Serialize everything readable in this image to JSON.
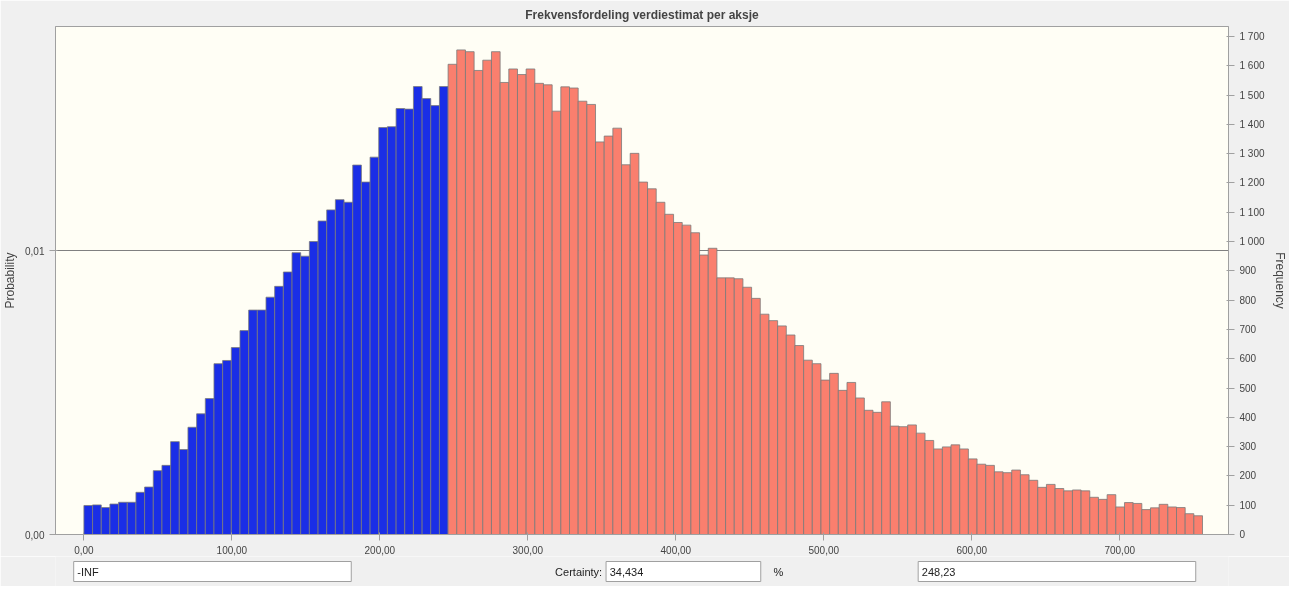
{
  "chart_data": {
    "type": "histogram",
    "title": "Frekvensfordeling verdiestimat per aksje",
    "ylabel": "Probability",
    "y2label": "Frequency",
    "bins": [
      0,
      5.86,
      11.72,
      17.58,
      23.44,
      29.3,
      35.16,
      41.02,
      46.88,
      52.74,
      58.6,
      64.46,
      70.32,
      76.18,
      82.04,
      87.9,
      93.76,
      99.62,
      105.48,
      111.34,
      117.2,
      123.06,
      128.92,
      134.78,
      140.64,
      146.5,
      152.36,
      158.22,
      164.08,
      169.94,
      175.8,
      181.66,
      187.52,
      193.38,
      199.24,
      205.1,
      210.96,
      216.82,
      222.68,
      228.54,
      234.4,
      240.26,
      246.12,
      251.98,
      257.84,
      263.7,
      269.56,
      275.42,
      281.28,
      287.14,
      293,
      298.86,
      304.72,
      310.58,
      316.44,
      322.3,
      328.16,
      334.02,
      339.88,
      345.74,
      351.6,
      357.46,
      363.32,
      369.18,
      375.04,
      380.9,
      386.76,
      392.62,
      398.48,
      404.34,
      410.2,
      416.06,
      421.92,
      427.78,
      433.64,
      439.5,
      445.36,
      451.22,
      457.08,
      462.94,
      468.8,
      474.66,
      480.52,
      486.38,
      492.24,
      498.1,
      503.96,
      509.82,
      515.68,
      521.54,
      527.4,
      533.26,
      539.12,
      544.98,
      550.84,
      556.7,
      562.56,
      568.42,
      574.28,
      580.14,
      586,
      591.86,
      597.72,
      603.58,
      609.44,
      615.3,
      621.16,
      627.02,
      632.88,
      638.74,
      644.6,
      650.46,
      656.32,
      662.18,
      668.04,
      673.9,
      679.76,
      685.62,
      691.48,
      697.34,
      703.2,
      709.06,
      714.92,
      720.78,
      726.64,
      732.5,
      738.36,
      744.22,
      750.08,
      755.94
    ],
    "series": [
      {
        "axis": "y2",
        "values": [
          99,
          101,
          92,
          104,
          110,
          110,
          144,
          162,
          218,
          236,
          317,
          290,
          366,
          412,
          464,
          583,
          594,
          638,
          696,
          766,
          766,
          810,
          847,
          896,
          962,
          950,
          1000,
          1070,
          1108,
          1143,
          1134,
          1261,
          1203,
          1288,
          1389,
          1392,
          1454,
          1452,
          1529,
          1488,
          1464,
          1529,
          1605,
          1654,
          1648,
          1584,
          1619,
          1648,
          1543,
          1589,
          1570,
          1589,
          1540,
          1535,
          1445,
          1528,
          1524,
          1479,
          1468,
          1340,
          1360,
          1387,
          1262,
          1301,
          1203,
          1180,
          1134,
          1093,
          1065,
          1056,
          1030,
          954,
          977,
          876,
          876,
          873,
          844,
          806,
          752,
          730,
          712,
          681,
          645,
          595,
          583,
          527,
          550,
          492,
          519,
          466,
          424,
          417,
          453,
          370,
          368,
          374,
          346,
          321,
          292,
          299,
          306,
          292,
          258,
          240,
          236,
          214,
          211,
          220,
          204,
          185,
          161,
          171,
          157,
          149,
          152,
          149,
          127,
          120,
          136,
          94,
          109,
          106,
          85,
          91,
          103,
          94,
          92,
          71,
          64
        ],
        "colors": [
          "#1a2ee6",
          "#1a2ee6",
          "#1a2ee6",
          "#1a2ee6",
          "#1a2ee6",
          "#1a2ee6",
          "#1a2ee6",
          "#1a2ee6",
          "#1a2ee6",
          "#1a2ee6",
          "#1a2ee6",
          "#1a2ee6",
          "#1a2ee6",
          "#1a2ee6",
          "#1a2ee6",
          "#1a2ee6",
          "#1a2ee6",
          "#1a2ee6",
          "#1a2ee6",
          "#1a2ee6",
          "#1a2ee6",
          "#1a2ee6",
          "#1a2ee6",
          "#1a2ee6",
          "#1a2ee6",
          "#1a2ee6",
          "#1a2ee6",
          "#1a2ee6",
          "#1a2ee6",
          "#1a2ee6",
          "#1a2ee6",
          "#1a2ee6",
          "#1a2ee6",
          "#1a2ee6",
          "#1a2ee6",
          "#1a2ee6",
          "#1a2ee6",
          "#1a2ee6",
          "#1a2ee6",
          "#1a2ee6",
          "#1a2ee6",
          "#1a2ee6",
          "#fa7f6e",
          "#fa7f6e",
          "#fa7f6e",
          "#fa7f6e",
          "#fa7f6e",
          "#fa7f6e",
          "#fa7f6e",
          "#fa7f6e",
          "#fa7f6e",
          "#fa7f6e",
          "#fa7f6e",
          "#fa7f6e",
          "#fa7f6e",
          "#fa7f6e",
          "#fa7f6e",
          "#fa7f6e",
          "#fa7f6e",
          "#fa7f6e",
          "#fa7f6e",
          "#fa7f6e",
          "#fa7f6e",
          "#fa7f6e",
          "#fa7f6e",
          "#fa7f6e",
          "#fa7f6e",
          "#fa7f6e",
          "#fa7f6e",
          "#fa7f6e",
          "#fa7f6e",
          "#fa7f6e",
          "#fa7f6e",
          "#fa7f6e",
          "#fa7f6e",
          "#fa7f6e",
          "#fa7f6e",
          "#fa7f6e",
          "#fa7f6e",
          "#fa7f6e",
          "#fa7f6e",
          "#fa7f6e",
          "#fa7f6e",
          "#fa7f6e",
          "#fa7f6e",
          "#fa7f6e",
          "#fa7f6e",
          "#fa7f6e",
          "#fa7f6e",
          "#fa7f6e",
          "#fa7f6e",
          "#fa7f6e",
          "#fa7f6e",
          "#fa7f6e",
          "#fa7f6e",
          "#fa7f6e",
          "#fa7f6e",
          "#fa7f6e",
          "#fa7f6e",
          "#fa7f6e",
          "#fa7f6e",
          "#fa7f6e",
          "#fa7f6e",
          "#fa7f6e",
          "#fa7f6e",
          "#fa7f6e",
          "#fa7f6e",
          "#fa7f6e",
          "#fa7f6e",
          "#fa7f6e",
          "#fa7f6e",
          "#fa7f6e",
          "#fa7f6e",
          "#fa7f6e",
          "#fa7f6e",
          "#fa7f6e",
          "#fa7f6e",
          "#fa7f6e",
          "#fa7f6e",
          "#fa7f6e",
          "#fa7f6e",
          "#fa7f6e",
          "#fa7f6e",
          "#fa7f6e",
          "#fa7f6e",
          "#fa7f6e",
          "#fa7f6e",
          "#fa7f6e",
          "#fa7f6e"
        ]
      }
    ],
    "xlim": [
      -19.2,
      773.5
    ],
    "xticks": [
      {
        "value": 0,
        "label": "0,00"
      },
      {
        "value": 100,
        "label": "100,00"
      },
      {
        "value": 200,
        "label": "200,00"
      },
      {
        "value": 300,
        "label": "300,00"
      },
      {
        "value": 400,
        "label": "400,00"
      },
      {
        "value": 500,
        "label": "500,00"
      },
      {
        "value": 600,
        "label": "600,00"
      },
      {
        "value": 700,
        "label": "700,00"
      }
    ],
    "ylim": [
      0,
      0.0179
    ],
    "yticks": [
      {
        "value": 0,
        "label": "0,00"
      },
      {
        "value": 0.01,
        "label": "0,01"
      }
    ],
    "y2lim": [
      0,
      1734
    ],
    "y2ticks": [
      0,
      100,
      200,
      300,
      400,
      500,
      600,
      700,
      800,
      900,
      {
        "value": 1000,
        "label": "1 000"
      },
      {
        "value": 1100,
        "label": "1 100"
      },
      {
        "value": 1200,
        "label": "1 200"
      },
      {
        "value": 1300,
        "label": "1 300"
      },
      {
        "value": 1400,
        "label": "1 400"
      },
      {
        "value": 1500,
        "label": "1 500"
      },
      {
        "value": 1600,
        "label": "1 600"
      },
      {
        "value": 1700,
        "label": "1 700"
      }
    ],
    "grid": "y",
    "annotations": [
      "-INF",
      "Certainty:",
      "34,434",
      "%",
      "248,23"
    ]
  }
}
